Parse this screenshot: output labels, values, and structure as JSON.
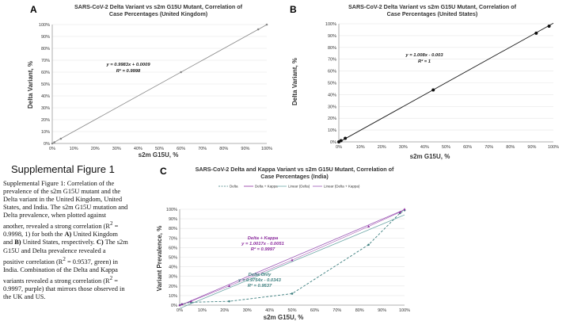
{
  "colors": {
    "diagonal": "#8a8a8a",
    "us_line": "#1a1a1a",
    "delta": "#3d7f7f",
    "delta_kappa": "#8e2fa0",
    "linear_delta": "#6fa8a8",
    "linear_dk": "#9b59b6",
    "grid": "#e6e6e6"
  },
  "supplemental": {
    "title": "Supplemental Figure 1",
    "caption": {
      "p1": "Supplemental Figure 1: Correlation of the prevalence of the s2m G15U mutant and the Delta variant in the United Kingdom, United States, and India.  The s2m G15U mutation and Delta prevalence, when plotted against another, revealed a strong correlation (R",
      "sup2": "2",
      "p2": " = 0.9998, 1) for both the ",
      "bA": "A)",
      "p3": " United Kingdom and ",
      "bB": "B)",
      "p4": " United States, respectively. ",
      "bC": "C)",
      "p5": " The s2m G15U and Delta prevalence revealed a positive correlation (R",
      "sup2b": "2",
      "p6": " = 0.9537, green) in India. Combination of the Delta and Kappa variants revealed a strong correlation (R",
      "sup2c": "2",
      "p7": " = 0.9997, purple) that mirrors those observed in the UK and US."
    }
  },
  "chart_data": [
    {
      "panel": "A",
      "type": "scatter",
      "title_line1": "SARS-CoV-2 Delta Variant vs s2m G15U Mutant, Correlation of",
      "title_line2": "Case Percentages (United Kingdom)",
      "xlabel": "s2m G15U, %",
      "ylabel": "Delta Variant, %",
      "xlim": [
        0,
        100
      ],
      "ylim": [
        0,
        100
      ],
      "xticks": [
        "0%",
        "10%",
        "20%",
        "30%",
        "40%",
        "50%",
        "60%",
        "70%",
        "80%",
        "90%",
        "100%"
      ],
      "yticks": [
        "0%",
        "10%",
        "20%",
        "30%",
        "40%",
        "50%",
        "60%",
        "70%",
        "80%",
        "90%",
        "100%"
      ],
      "points": [
        [
          0,
          0
        ],
        [
          1,
          1
        ],
        [
          4,
          4
        ],
        [
          60,
          60
        ],
        [
          96,
          96
        ],
        [
          100,
          100
        ]
      ],
      "trendline": {
        "slope": 0.9983,
        "intercept": 0.0009
      },
      "equation": "y = 0.9983x + 0.0009",
      "r2": "R² = 0.9998"
    },
    {
      "panel": "B",
      "type": "scatter",
      "title_line1": "SARS-CoV-2 Delta Variant vs s2m G15U Mutant, Correlation of",
      "title_line2": "Case Percentages (United States)",
      "xlabel": "s2m G15U, %",
      "ylabel": "Delta Variant, %",
      "xlim": [
        0,
        100
      ],
      "ylim": [
        0,
        100
      ],
      "xticks": [
        "0%",
        "10%",
        "20%",
        "30%",
        "40%",
        "50%",
        "60%",
        "70%",
        "80%",
        "90%",
        "100%"
      ],
      "yticks": [
        "0%",
        "10%",
        "20%",
        "30%",
        "40%",
        "50%",
        "60%",
        "70%",
        "80%",
        "90%",
        "100%"
      ],
      "points": [
        [
          0,
          0
        ],
        [
          1,
          1
        ],
        [
          3,
          3
        ],
        [
          44,
          44
        ],
        [
          92,
          92
        ],
        [
          98,
          98
        ]
      ],
      "trendline": {
        "slope": 1.008,
        "intercept": -0.003
      },
      "equation": "y = 1.008x - 0.003",
      "r2": "R² = 1"
    },
    {
      "panel": "C",
      "type": "line",
      "title_line1": "SARS-CoV-2 Delta and Kappa Variant vs s2m G15U Mutant, Correlation of",
      "title_line2": "Case Percentages (India)",
      "xlabel": "s2m G15U, %",
      "ylabel": "Variant Prevalence, %",
      "xlim": [
        0,
        100
      ],
      "ylim": [
        0,
        100
      ],
      "xticks": [
        "0%",
        "10%",
        "20%",
        "30%",
        "40%",
        "50%",
        "60%",
        "70%",
        "80%",
        "90%",
        "100%"
      ],
      "yticks": [
        "0%",
        "10%",
        "20%",
        "30%",
        "40%",
        "50%",
        "60%",
        "70%",
        "80%",
        "90%",
        "100%"
      ],
      "legend": [
        "Delta",
        "Delta + Kappa",
        "Linear (Delta)",
        "Linear (Delta + Kappa)"
      ],
      "series": [
        {
          "name": "Delta",
          "points": [
            [
              0,
              0
            ],
            [
              1,
              1
            ],
            [
              5,
              3
            ],
            [
              22,
              4
            ],
            [
              50,
              12
            ],
            [
              84,
              63
            ],
            [
              98,
              96
            ],
            [
              100,
              99
            ]
          ]
        },
        {
          "name": "Delta + Kappa",
          "points": [
            [
              0,
              0
            ],
            [
              1,
              1
            ],
            [
              5,
              4
            ],
            [
              22,
              20
            ],
            [
              50,
              47
            ],
            [
              84,
              82
            ],
            [
              98,
              97
            ],
            [
              100,
              100
            ]
          ]
        }
      ],
      "trendlines": [
        {
          "name": "Linear (Delta)",
          "slope": 0.9754,
          "intercept": -0.0343
        },
        {
          "name": "Linear (Delta + Kappa)",
          "slope": 1.0017,
          "intercept": -0.0051
        }
      ],
      "annotations": {
        "dk_title": "Delta + Kappa",
        "dk_eq": "y = 1.0017x - 0.0051",
        "dk_r2": "R² = 0.9997",
        "d_title": "Delta Only",
        "d_eq": "y = 0.9754x - 0.0343",
        "d_r2": "R² = 0.9537"
      }
    }
  ]
}
